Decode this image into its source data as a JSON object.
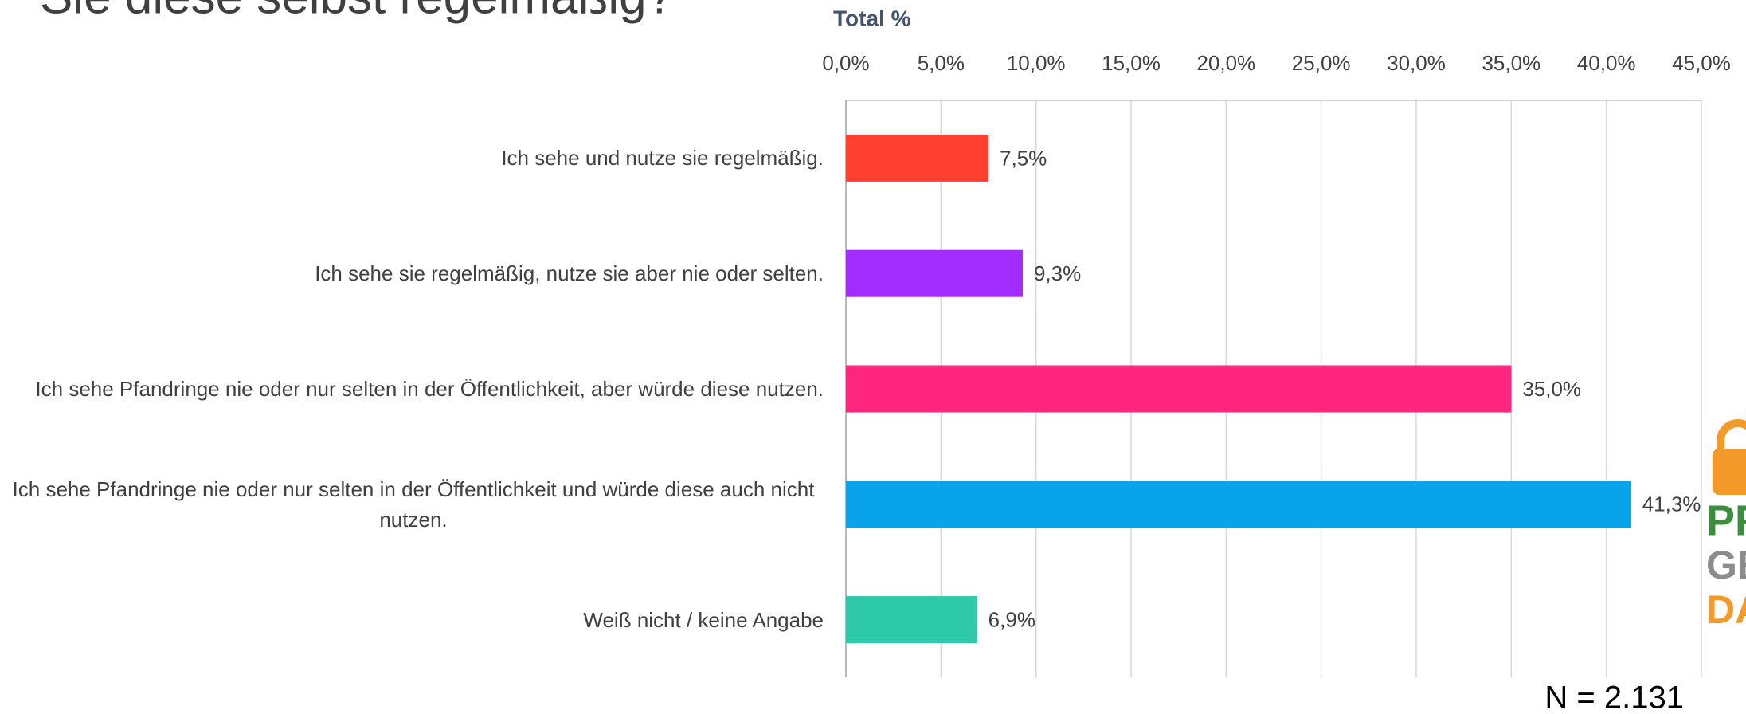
{
  "chart_data": {
    "type": "bar",
    "orientation": "horizontal",
    "title": "Sie diese selbst regelmäßig?",
    "axis_title": "Total %",
    "categories": [
      "Ich sehe und nutze sie regelmäßig.",
      "Ich sehe sie regelmäßig, nutze sie aber nie oder selten.",
      "Ich sehe Pfandringe nie oder nur selten in der Öffentlichkeit, aber würde diese nutzen.",
      "Ich sehe Pfandringe nie oder nur selten in der Öffentlichkeit und würde diese auch nicht nutzen.",
      "Weiß nicht / keine Angabe"
    ],
    "values": [
      7.5,
      9.3,
      35.0,
      41.3,
      6.9
    ],
    "value_labels": [
      "7,5%",
      "9,3%",
      "35,0%",
      "41,3%",
      "6,9%"
    ],
    "colors": [
      "#FF4030",
      "#A22BFF",
      "#FF2680",
      "#09A3EC",
      "#2EC9A8"
    ],
    "xlim": [
      0,
      45
    ],
    "xticks": [
      {
        "value": 0,
        "label": "0,0%"
      },
      {
        "value": 5,
        "label": "5,0%"
      },
      {
        "value": 10,
        "label": "10,0%"
      },
      {
        "value": 15,
        "label": "15,0%"
      },
      {
        "value": 20,
        "label": "20,0%"
      },
      {
        "value": 25,
        "label": "25,0%"
      },
      {
        "value": 30,
        "label": "30,0%"
      },
      {
        "value": 35,
        "label": "35,0%"
      },
      {
        "value": 40,
        "label": "40,0%"
      },
      {
        "value": 45,
        "label": "45,0%"
      }
    ],
    "grid": true,
    "note": "N = 2.131",
    "logo": [
      "PFAND",
      "GEHÖRT",
      "DANEBEN"
    ]
  }
}
